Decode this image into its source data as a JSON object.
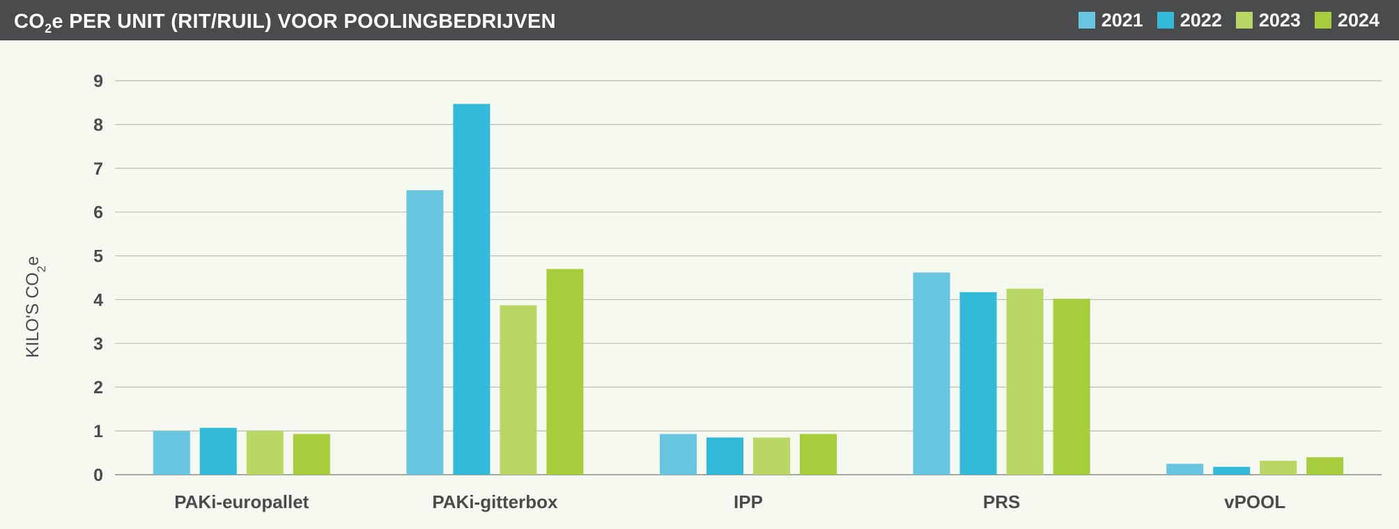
{
  "header": {
    "title_parts": [
      "CO",
      "2",
      "e PER UNIT (RIT/RUIL) VOOR POOLINGBEDRIJVEN"
    ]
  },
  "chart_data": {
    "type": "bar",
    "title": "CO₂e PER UNIT (RIT/RUIL) VOOR POOLINGBEDRIJVEN",
    "ylabel": "KILO'S CO₂e",
    "ylabel_parts": [
      "KILO'S CO",
      "2",
      "e"
    ],
    "xlabel": "",
    "categories": [
      "PAKi-europallet",
      "PAKi-gitterbox",
      "IPP",
      "PRS",
      "vPOOL"
    ],
    "series": [
      {
        "name": "2021",
        "color": "#69c6e1",
        "values": [
          1.0,
          6.5,
          0.93,
          4.62,
          0.25
        ]
      },
      {
        "name": "2022",
        "color": "#32bad8",
        "values": [
          1.07,
          8.47,
          0.85,
          4.17,
          0.18
        ]
      },
      {
        "name": "2023",
        "color": "#b8d764",
        "values": [
          1.0,
          3.87,
          0.85,
          4.25,
          0.32
        ]
      },
      {
        "name": "2024",
        "color": "#a6cd3b",
        "values": [
          0.93,
          4.7,
          0.93,
          4.02,
          0.4
        ]
      }
    ],
    "yticks": [
      "0",
      "1",
      "2",
      "3",
      "4",
      "5",
      "6",
      "7",
      "8",
      "9"
    ],
    "ylim": [
      0,
      9
    ],
    "grid": true,
    "legend_position": "top-right"
  }
}
